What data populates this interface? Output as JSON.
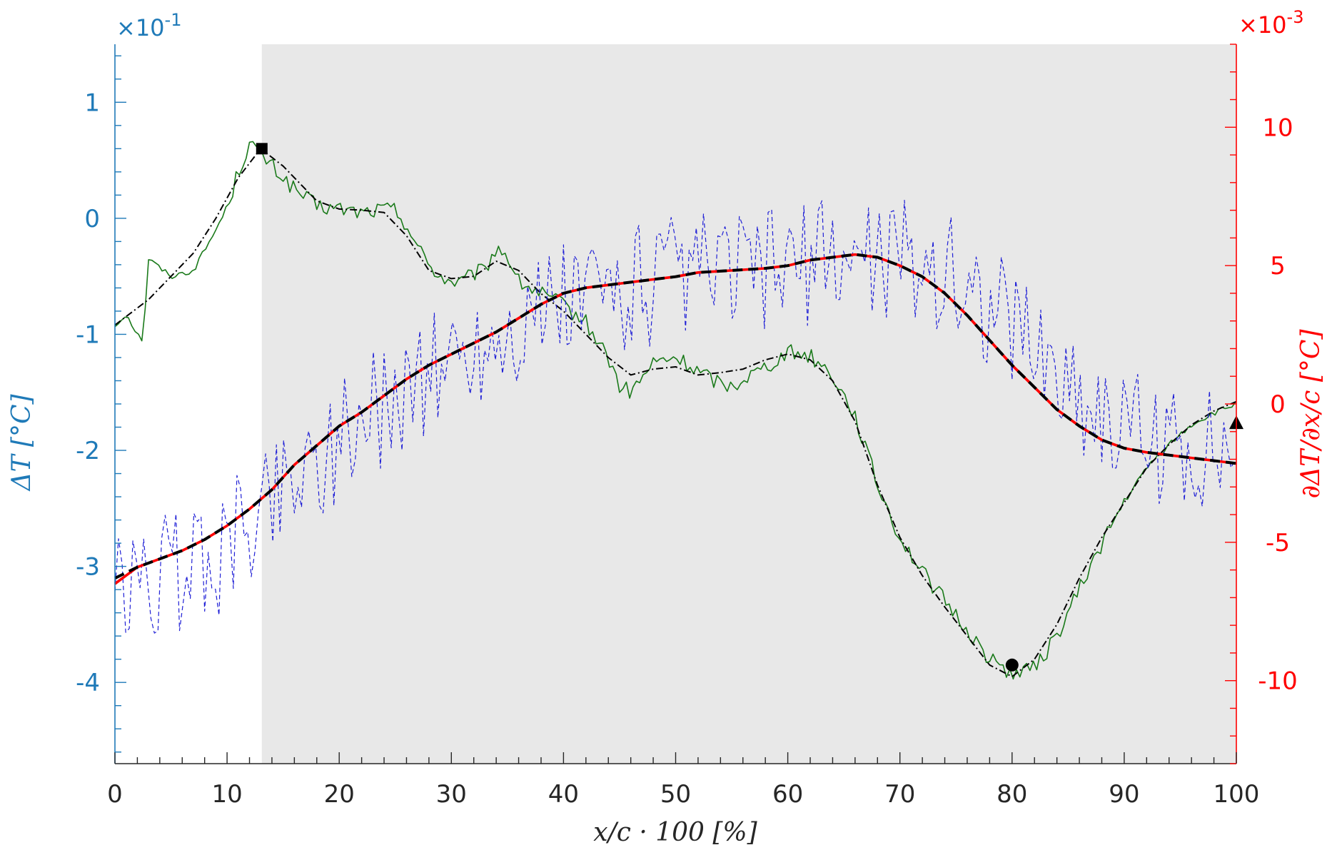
{
  "chart_data": {
    "type": "line",
    "xlabel": "x/c · 100 [%]",
    "ylabel_left": "ΔT [°C]",
    "ylabel_right": "∂ΔT/∂x/c [°C]",
    "left_multiplier": "×10",
    "left_exponent": "-1",
    "right_multiplier": "×10",
    "right_exponent": "-3",
    "xlim": [
      0,
      100
    ],
    "ylim_left": [
      -4.7,
      1.5
    ],
    "ylim_right": [
      -13,
      13
    ],
    "x_ticks": [
      "0",
      "10",
      "20",
      "30",
      "40",
      "50",
      "60",
      "70",
      "80",
      "90",
      "100"
    ],
    "y_left_ticks": [
      "1",
      "0",
      "-1",
      "-2",
      "-3",
      "-4"
    ],
    "y_right_ticks": [
      "10",
      "5",
      "0",
      "-5",
      "-10"
    ],
    "shaded_region": [
      13.1,
      100
    ],
    "colors": {
      "left_axis": "#1f7ab8",
      "right_axis": "#ff0000",
      "shade": "#e8e8e8",
      "temperature_raw": "#1a7a1a",
      "derivative_raw": "#1f1fd6",
      "smoothed": "#000000",
      "derivative_smooth": "#ff0000"
    },
    "series": [
      {
        "axis": "left",
        "style": "solid-noisy",
        "color": "#1a7a1a",
        "x": [
          0,
          1,
          2,
          2.5,
          3,
          5,
          7,
          9,
          10,
          11,
          12,
          13,
          14,
          16,
          18,
          20,
          22,
          24,
          25,
          26,
          27,
          28,
          29,
          30,
          31,
          32,
          33,
          34,
          35,
          36,
          38,
          40,
          42,
          44,
          45,
          46,
          47,
          48,
          50,
          52,
          54,
          55,
          56,
          58,
          60,
          62,
          64,
          66,
          68,
          70,
          72,
          74,
          76,
          78,
          80,
          82,
          84,
          86,
          88,
          90,
          92,
          94,
          96,
          98,
          100
        ],
        "y": [
          -0.93,
          -0.82,
          -1.0,
          -1.05,
          -0.35,
          -0.5,
          -0.45,
          -0.1,
          0.1,
          0.4,
          0.65,
          0.55,
          0.45,
          0.25,
          0.1,
          0.08,
          0.05,
          0.08,
          0.07,
          -0.05,
          -0.25,
          -0.4,
          -0.5,
          -0.55,
          -0.55,
          -0.48,
          -0.45,
          -0.25,
          -0.32,
          -0.55,
          -0.65,
          -0.75,
          -0.9,
          -1.2,
          -1.45,
          -1.5,
          -1.38,
          -1.25,
          -1.2,
          -1.32,
          -1.42,
          -1.45,
          -1.38,
          -1.28,
          -1.15,
          -1.18,
          -1.35,
          -1.7,
          -2.3,
          -2.75,
          -3.05,
          -3.3,
          -3.55,
          -3.8,
          -3.92,
          -3.88,
          -3.6,
          -3.2,
          -2.8,
          -2.45,
          -2.15,
          -1.95,
          -1.78,
          -1.68,
          -1.6
        ],
        "noise_from": 10,
        "noise_to": 90,
        "noise_amp": 0.07
      },
      {
        "axis": "left",
        "style": "dashdot",
        "color": "#000000",
        "x": [
          0,
          3,
          5,
          7,
          9,
          11,
          13,
          15,
          18,
          20,
          22,
          24,
          26,
          28,
          30,
          32,
          34,
          36,
          38,
          40,
          42,
          44,
          46,
          48,
          50,
          52,
          54,
          56,
          58,
          60,
          62,
          64,
          66,
          68,
          70,
          72,
          74,
          76,
          78,
          80,
          82,
          84,
          86,
          88,
          90,
          92,
          94,
          96,
          98,
          100
        ],
        "y": [
          -0.92,
          -0.7,
          -0.5,
          -0.3,
          0.0,
          0.35,
          0.6,
          0.45,
          0.15,
          0.08,
          0.07,
          0.05,
          -0.15,
          -0.45,
          -0.52,
          -0.5,
          -0.37,
          -0.45,
          -0.65,
          -0.8,
          -1.0,
          -1.2,
          -1.35,
          -1.3,
          -1.28,
          -1.35,
          -1.33,
          -1.3,
          -1.22,
          -1.17,
          -1.22,
          -1.4,
          -1.75,
          -2.3,
          -2.75,
          -3.08,
          -3.35,
          -3.6,
          -3.85,
          -3.95,
          -3.8,
          -3.5,
          -3.1,
          -2.75,
          -2.45,
          -2.15,
          -1.95,
          -1.78,
          -1.66,
          -1.58
        ]
      },
      {
        "axis": "right",
        "style": "dashed-noisy",
        "color": "#1f1fd6",
        "x": [
          0,
          5,
          10,
          15,
          20,
          25,
          30,
          35,
          40,
          45,
          50,
          55,
          60,
          65,
          70,
          75,
          80,
          85,
          90,
          95,
          100
        ],
        "y": [
          -7.0,
          -6.2,
          -5.2,
          -2.8,
          -1.3,
          0.3,
          1.5,
          2.6,
          3.6,
          4.2,
          4.5,
          4.7,
          5.0,
          5.3,
          5.4,
          4.5,
          3.0,
          0.8,
          -1.0,
          -1.6,
          -1.8
        ],
        "noise_amp": 2.3
      },
      {
        "axis": "right",
        "style": "solid-thick",
        "color": "#ff0000",
        "x": [
          0,
          2,
          4,
          6,
          8,
          10,
          12,
          14,
          16,
          18,
          20,
          22,
          24,
          26,
          28,
          30,
          32,
          34,
          36,
          38,
          40,
          42,
          44,
          46,
          48,
          50,
          52,
          54,
          56,
          58,
          60,
          62,
          64,
          66,
          68,
          70,
          72,
          74,
          76,
          78,
          80,
          82,
          84,
          86,
          88,
          90,
          92,
          94,
          96,
          98,
          100
        ],
        "y": [
          -6.5,
          -5.9,
          -5.6,
          -5.3,
          -4.9,
          -4.4,
          -3.8,
          -3.1,
          -2.2,
          -1.5,
          -0.8,
          -0.3,
          0.3,
          0.9,
          1.4,
          1.8,
          2.2,
          2.6,
          3.1,
          3.6,
          4.0,
          4.2,
          4.3,
          4.4,
          4.5,
          4.6,
          4.75,
          4.8,
          4.85,
          4.9,
          5.0,
          5.2,
          5.3,
          5.4,
          5.3,
          5.0,
          4.6,
          4.0,
          3.2,
          2.3,
          1.4,
          0.6,
          -0.2,
          -0.8,
          -1.3,
          -1.6,
          -1.75,
          -1.85,
          -1.95,
          -2.05,
          -2.15
        ]
      },
      {
        "axis": "right",
        "style": "dashed-thick",
        "color": "#000000",
        "x": [
          0,
          2,
          4,
          6,
          8,
          10,
          12,
          14,
          16,
          18,
          20,
          22,
          24,
          26,
          28,
          30,
          32,
          34,
          36,
          38,
          40,
          42,
          44,
          46,
          48,
          50,
          52,
          54,
          56,
          58,
          60,
          62,
          64,
          66,
          68,
          70,
          72,
          74,
          76,
          78,
          80,
          82,
          84,
          86,
          88,
          90,
          92,
          94,
          96,
          98,
          100
        ],
        "y": [
          -6.3,
          -5.9,
          -5.6,
          -5.3,
          -4.9,
          -4.4,
          -3.8,
          -3.1,
          -2.2,
          -1.5,
          -0.8,
          -0.3,
          0.3,
          0.9,
          1.4,
          1.8,
          2.2,
          2.6,
          3.1,
          3.6,
          4.0,
          4.2,
          4.3,
          4.4,
          4.5,
          4.6,
          4.75,
          4.8,
          4.85,
          4.9,
          5.0,
          5.2,
          5.3,
          5.4,
          5.3,
          5.0,
          4.6,
          4.0,
          3.2,
          2.3,
          1.4,
          0.6,
          -0.2,
          -0.8,
          -1.3,
          -1.6,
          -1.75,
          -1.85,
          -1.95,
          -2.05,
          -2.15
        ]
      }
    ],
    "markers": [
      {
        "shape": "square",
        "axis": "left",
        "x": 13.1,
        "y": 0.6
      },
      {
        "shape": "circle",
        "axis": "left",
        "x": 80,
        "y": -3.85
      },
      {
        "shape": "triangle",
        "axis": "right",
        "x": 100,
        "y": -0.7
      }
    ]
  }
}
